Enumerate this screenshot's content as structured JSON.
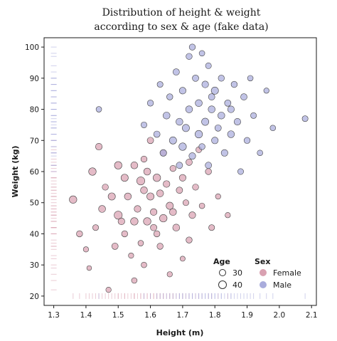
{
  "chart_data": {
    "type": "scatter",
    "title": [
      "Distribution of height & weight",
      "according to sex & age (fake data)"
    ],
    "xlabel": "Height (m)",
    "ylabel": "Weight (kg)",
    "xlim": [
      1.27,
      2.115
    ],
    "ylim": [
      17,
      103
    ],
    "xticks": [
      "1.3",
      "1.4",
      "1.5",
      "1.6",
      "1.7",
      "1.8",
      "1.9",
      "2.0",
      "2.1"
    ],
    "yticks": [
      "20",
      "30",
      "40",
      "50",
      "60",
      "70",
      "80",
      "90",
      "100"
    ],
    "grid": false,
    "legend_position": "bottom-right",
    "legend": {
      "size_title": "Age",
      "size_entries": [
        {
          "label": "30",
          "value": 30
        },
        {
          "label": "40",
          "value": 40
        }
      ],
      "color_title": "Sex",
      "color_entries": [
        {
          "label": "Female",
          "color": "#d9a1b1"
        },
        {
          "label": "Male",
          "color": "#a9acdc"
        }
      ]
    },
    "series": [
      {
        "name": "Female",
        "color": "#d9a1b1",
        "points": [
          [
            1.36,
            51,
            38
          ],
          [
            1.38,
            40,
            33
          ],
          [
            1.4,
            35,
            30
          ],
          [
            1.41,
            29,
            28
          ],
          [
            1.42,
            60,
            38
          ],
          [
            1.43,
            42,
            32
          ],
          [
            1.44,
            68,
            35
          ],
          [
            1.45,
            48,
            36
          ],
          [
            1.47,
            22,
            30
          ],
          [
            1.46,
            55,
            33
          ],
          [
            1.49,
            36,
            34
          ],
          [
            1.5,
            62,
            38
          ],
          [
            1.5,
            46,
            40
          ],
          [
            1.52,
            40,
            33
          ],
          [
            1.52,
            58,
            37
          ],
          [
            1.53,
            52,
            36
          ],
          [
            1.54,
            33,
            30
          ],
          [
            1.55,
            62,
            36
          ],
          [
            1.55,
            44,
            38
          ],
          [
            1.56,
            48,
            35
          ],
          [
            1.57,
            57,
            40
          ],
          [
            1.57,
            37,
            31
          ],
          [
            1.58,
            54,
            36
          ],
          [
            1.58,
            64,
            33
          ],
          [
            1.59,
            44,
            38
          ],
          [
            1.6,
            52,
            37
          ],
          [
            1.6,
            70,
            34
          ],
          [
            1.61,
            47,
            35
          ],
          [
            1.62,
            58,
            38
          ],
          [
            1.62,
            40,
            33
          ],
          [
            1.63,
            53,
            36
          ],
          [
            1.64,
            66,
            34
          ],
          [
            1.64,
            45,
            38
          ],
          [
            1.65,
            56,
            35
          ],
          [
            1.66,
            49,
            37
          ],
          [
            1.67,
            61,
            33
          ],
          [
            1.68,
            42,
            36
          ],
          [
            1.69,
            54,
            34
          ],
          [
            1.7,
            58,
            35
          ],
          [
            1.71,
            50,
            32
          ],
          [
            1.72,
            63,
            34
          ],
          [
            1.73,
            46,
            35
          ],
          [
            1.74,
            55,
            33
          ],
          [
            1.75,
            67,
            32
          ],
          [
            1.76,
            49,
            31
          ],
          [
            1.78,
            60,
            33
          ],
          [
            1.79,
            42,
            32
          ],
          [
            1.81,
            52,
            30
          ],
          [
            1.84,
            46,
            30
          ],
          [
            1.58,
            30,
            31
          ],
          [
            1.66,
            27,
            30
          ],
          [
            1.7,
            32,
            29
          ],
          [
            1.63,
            36,
            33
          ],
          [
            1.55,
            25,
            31
          ],
          [
            1.72,
            38,
            33
          ],
          [
            1.51,
            44,
            35
          ],
          [
            1.48,
            52,
            37
          ],
          [
            1.59,
            60,
            36
          ],
          [
            1.61,
            42,
            34
          ],
          [
            1.67,
            47,
            36
          ]
        ]
      },
      {
        "name": "Male",
        "color": "#a9acdc",
        "points": [
          [
            1.44,
            80,
            31
          ],
          [
            1.58,
            75,
            32
          ],
          [
            1.6,
            82,
            33
          ],
          [
            1.62,
            72,
            34
          ],
          [
            1.63,
            88,
            32
          ],
          [
            1.64,
            66,
            35
          ],
          [
            1.65,
            78,
            36
          ],
          [
            1.66,
            84,
            33
          ],
          [
            1.67,
            70,
            37
          ],
          [
            1.68,
            92,
            34
          ],
          [
            1.69,
            76,
            36
          ],
          [
            1.7,
            68,
            38
          ],
          [
            1.7,
            86,
            35
          ],
          [
            1.71,
            74,
            37
          ],
          [
            1.72,
            97,
            33
          ],
          [
            1.72,
            80,
            36
          ],
          [
            1.73,
            65,
            35
          ],
          [
            1.74,
            90,
            34
          ],
          [
            1.75,
            72,
            38
          ],
          [
            1.75,
            82,
            36
          ],
          [
            1.76,
            68,
            33
          ],
          [
            1.77,
            88,
            35
          ],
          [
            1.77,
            76,
            37
          ],
          [
            1.78,
            62,
            34
          ],
          [
            1.78,
            94,
            32
          ],
          [
            1.79,
            80,
            36
          ],
          [
            1.8,
            70,
            35
          ],
          [
            1.8,
            86,
            37
          ],
          [
            1.81,
            74,
            34
          ],
          [
            1.82,
            90,
            33
          ],
          [
            1.82,
            78,
            36
          ],
          [
            1.83,
            66,
            35
          ],
          [
            1.84,
            82,
            34
          ],
          [
            1.85,
            72,
            36
          ],
          [
            1.86,
            88,
            33
          ],
          [
            1.87,
            76,
            35
          ],
          [
            1.88,
            60,
            32
          ],
          [
            1.89,
            84,
            34
          ],
          [
            1.9,
            70,
            33
          ],
          [
            1.91,
            90,
            31
          ],
          [
            1.92,
            78,
            32
          ],
          [
            1.94,
            66,
            31
          ],
          [
            1.96,
            86,
            30
          ],
          [
            1.98,
            74,
            31
          ],
          [
            2.08,
            77,
            32
          ],
          [
            1.73,
            100,
            33
          ],
          [
            1.76,
            98,
            31
          ],
          [
            1.69,
            62,
            34
          ],
          [
            1.85,
            80,
            35
          ],
          [
            1.79,
            84,
            34
          ]
        ]
      }
    ]
  }
}
